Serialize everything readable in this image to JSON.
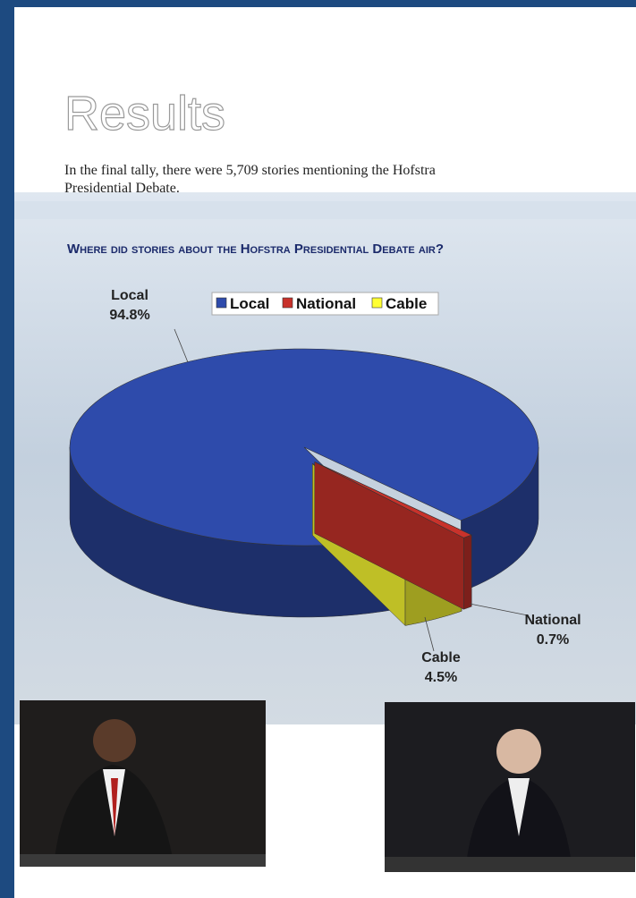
{
  "heading": "Results",
  "intro": [
    "In the final tally, there were 5,709 stories mentioning the Hofstra",
    "Presidential Debate."
  ],
  "chart_data": {
    "type": "pie",
    "title": "Where did stories about the Hofstra Presidential Debate air?",
    "categories": [
      "Local",
      "National",
      "Cable"
    ],
    "values": [
      94.8,
      0.7,
      4.5
    ],
    "value_labels": [
      "94.8%",
      "0.7%",
      "4.5%"
    ],
    "colors": [
      "#2e4bab",
      "#c8322b",
      "#ffff33"
    ],
    "legend": "top"
  }
}
